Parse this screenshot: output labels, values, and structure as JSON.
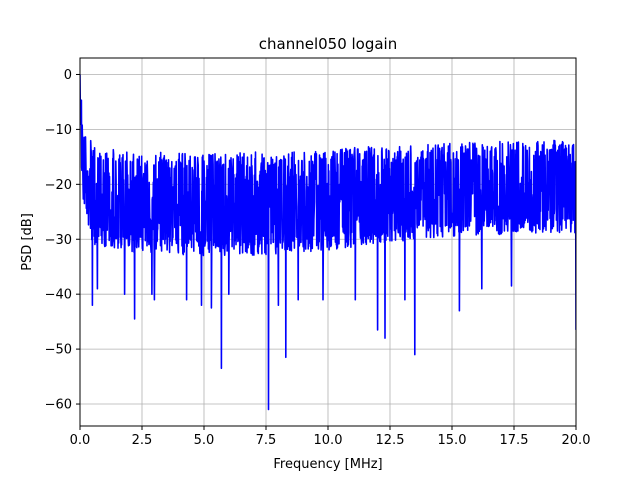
{
  "chart_data": {
    "type": "line",
    "title": "channel050 logain",
    "xlabel": "Frequency [MHz]",
    "ylabel": "PSD [dB]",
    "xlim": [
      0,
      20
    ],
    "ylim": [
      -64,
      3
    ],
    "grid": true,
    "x_ticks": [
      0,
      2.5,
      5,
      7.5,
      10,
      12.5,
      15,
      17.5,
      20
    ],
    "x_tick_labels": [
      "0.0",
      "2.5",
      "5.0",
      "7.5",
      "10.0",
      "12.5",
      "15.0",
      "17.5",
      "20.0"
    ],
    "y_ticks": [
      0,
      -10,
      -20,
      -30,
      -40,
      -50,
      -60
    ],
    "y_tick_labels": [
      "0",
      "−10",
      "−20",
      "−30",
      "−40",
      "−50",
      "−60"
    ],
    "series": [
      {
        "color": "#0000ff",
        "x_range": [
          0,
          20
        ],
        "envelope": {
          "x": [
            0,
            0.05,
            0.15,
            0.3,
            0.5,
            1,
            2.5,
            5,
            7.5,
            10,
            12.5,
            15,
            17.5,
            20
          ],
          "upper": [
            0,
            -4,
            -7,
            -10,
            -13,
            -13.5,
            -14,
            -14.5,
            -14,
            -13.5,
            -13,
            -12.5,
            -12,
            -12
          ],
          "center": [
            -5,
            -10,
            -16,
            -20,
            -22,
            -23.5,
            -24,
            -24.5,
            -24,
            -23,
            -22,
            -21,
            -21,
            -21
          ],
          "lower": [
            -10,
            -18,
            -24,
            -28,
            -31,
            -32,
            -32.5,
            -33,
            -33,
            -32,
            -30.5,
            -29.5,
            -29,
            -29
          ]
        },
        "notable_minima": [
          {
            "x": 0.5,
            "y": -42
          },
          {
            "x": 0.7,
            "y": -39
          },
          {
            "x": 1.8,
            "y": -40
          },
          {
            "x": 2.2,
            "y": -44.5
          },
          {
            "x": 2.9,
            "y": -40
          },
          {
            "x": 3.0,
            "y": -41
          },
          {
            "x": 4.3,
            "y": -41
          },
          {
            "x": 4.9,
            "y": -42
          },
          {
            "x": 5.3,
            "y": -42.5
          },
          {
            "x": 5.7,
            "y": -53.5
          },
          {
            "x": 6.0,
            "y": -40
          },
          {
            "x": 7.6,
            "y": -61
          },
          {
            "x": 8.0,
            "y": -42
          },
          {
            "x": 8.3,
            "y": -51.5
          },
          {
            "x": 8.8,
            "y": -41
          },
          {
            "x": 9.8,
            "y": -41
          },
          {
            "x": 11.1,
            "y": -41
          },
          {
            "x": 12.0,
            "y": -46.5
          },
          {
            "x": 12.3,
            "y": -48
          },
          {
            "x": 13.1,
            "y": -41
          },
          {
            "x": 13.5,
            "y": -51
          },
          {
            "x": 15.3,
            "y": -43
          },
          {
            "x": 16.2,
            "y": -39
          },
          {
            "x": 17.4,
            "y": -38.5
          },
          {
            "x": 20.0,
            "y": -46.5
          }
        ]
      }
    ]
  }
}
